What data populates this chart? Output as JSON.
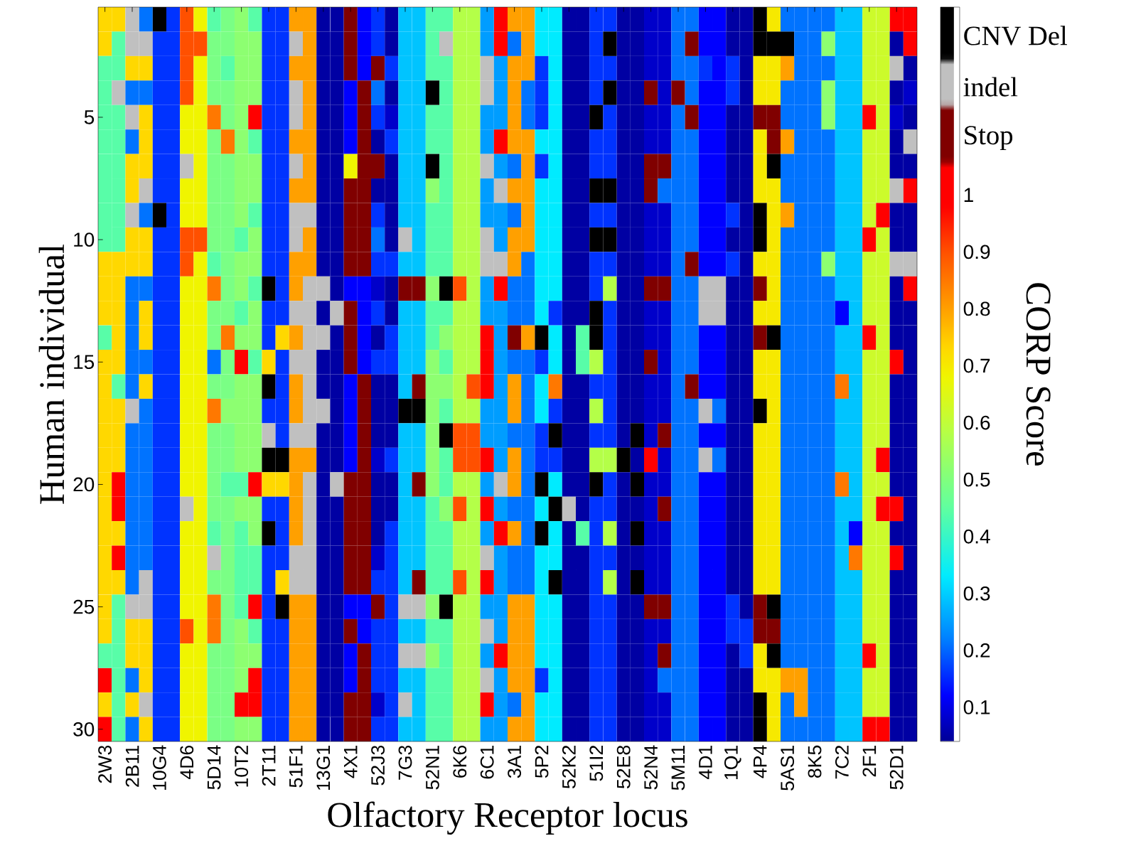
{
  "chart_data": {
    "type": "heatmap",
    "xlabel": "Olfactory Receptor locus",
    "ylabel": "Human individual",
    "clabel": "CORP Score",
    "categories": [
      "2W3",
      null,
      "2B11",
      null,
      "10G4",
      null,
      "4D6",
      null,
      "5D14",
      null,
      "10T2",
      null,
      "2T11",
      null,
      "51F1",
      null,
      "13G1",
      null,
      "4X1",
      null,
      "52J3",
      null,
      "7G3",
      null,
      "52N1",
      null,
      "6K6",
      null,
      "6C1",
      null,
      "3A1",
      null,
      "5P2",
      null,
      "52K2",
      null,
      "51I2",
      null,
      "52E8",
      null,
      "52N4",
      null,
      "5M11",
      null,
      "4D1",
      null,
      "1Q1",
      null,
      "4P4",
      null,
      "5AS1",
      null,
      "8K5",
      null,
      "7C2",
      null,
      "2F1",
      null,
      "52D1",
      null
    ],
    "y_categories": [
      null,
      null,
      null,
      null,
      "5",
      null,
      null,
      null,
      null,
      "10",
      null,
      null,
      null,
      null,
      "15",
      null,
      null,
      null,
      null,
      "20",
      null,
      null,
      null,
      null,
      "25",
      null,
      null,
      null,
      null,
      "30"
    ],
    "clim": [
      0.04,
      1.33
    ],
    "cticks": [
      0.1,
      0.2,
      0.3,
      0.4,
      0.5,
      0.6,
      0.7,
      0.8,
      0.9,
      1,
      {
        "value": 1.1,
        "label": "Stop"
      },
      {
        "value": 1.19,
        "label": "indel"
      },
      {
        "value": 1.28,
        "label": "CNV Del"
      }
    ],
    "cells": [
      [
        0.73,
        0.73,
        1.19,
        0.21,
        1.28,
        0.16,
        0.9,
        0.68,
        0.44,
        0.49,
        0.52,
        0.44,
        0.16,
        0.16,
        0.8,
        0.8,
        0.05,
        0.05,
        1.1,
        0.12,
        0.16,
        0.05,
        0.29,
        0.29,
        0.44,
        0.44,
        0.58,
        0.58,
        0.25,
        1,
        0.8,
        0.8,
        0.33,
        0.33,
        0.05,
        0.05,
        0.16,
        0.16,
        0.05,
        0.05,
        0.08,
        0.08,
        0.21,
        0.21,
        0.12,
        0.12,
        0.05,
        0.05,
        1.28,
        0.7,
        0.21,
        0.21,
        0.21,
        0.21,
        0.29,
        0.29,
        0.62,
        0.62,
        1,
        1
      ],
      [
        0.73,
        0.44,
        1.19,
        1.19,
        0.16,
        0.16,
        0.9,
        0.9,
        0.49,
        0.49,
        0.52,
        0.52,
        0.16,
        0.16,
        1.19,
        0.8,
        0.05,
        0.05,
        1.1,
        0.12,
        0.16,
        0.05,
        0.29,
        0.29,
        0.44,
        1.19,
        0.58,
        0.58,
        0.25,
        1,
        0.21,
        0.8,
        0.33,
        0.33,
        0.05,
        0.05,
        0.16,
        1.28,
        0.05,
        0.05,
        0.08,
        0.08,
        0.21,
        1.1,
        0.12,
        0.12,
        0.05,
        0.05,
        1.28,
        1.28,
        1.28,
        0.21,
        0.21,
        0.52,
        0.29,
        0.29,
        0.62,
        0.62,
        0.05,
        1
      ],
      [
        0.44,
        0.44,
        0.73,
        0.73,
        0.16,
        0.16,
        0.9,
        0.68,
        0.49,
        0.44,
        0.52,
        0.52,
        0.16,
        0.16,
        0.8,
        0.8,
        0.05,
        0.05,
        1.1,
        0.12,
        1.1,
        0.16,
        0.29,
        0.29,
        0.44,
        0.44,
        0.58,
        0.58,
        1.19,
        0.25,
        0.8,
        0.8,
        0.16,
        0.33,
        0.05,
        0.05,
        0.16,
        0.16,
        0.05,
        0.05,
        0.08,
        0.08,
        0.21,
        0.21,
        0.16,
        0.12,
        0.16,
        0.05,
        0.7,
        0.7,
        0.8,
        0.21,
        0.21,
        0.21,
        0.29,
        0.29,
        0.62,
        0.62,
        1.19,
        0.05
      ],
      [
        0.44,
        1.19,
        0.21,
        0.21,
        0.16,
        0.16,
        0.9,
        0.68,
        0.49,
        0.49,
        0.52,
        0.52,
        0.16,
        0.16,
        1.19,
        0.8,
        0.05,
        0.05,
        0.12,
        1.1,
        0.21,
        0.05,
        0.29,
        0.29,
        1.28,
        0.44,
        0.58,
        0.58,
        1.19,
        0.25,
        0.8,
        0.21,
        0.16,
        0.33,
        0.05,
        0.05,
        0.16,
        1.28,
        0.05,
        0.05,
        1.1,
        0.08,
        1.1,
        0.21,
        0.12,
        0.12,
        0.16,
        0.05,
        0.7,
        0.7,
        0.21,
        0.21,
        0.21,
        0.52,
        0.29,
        0.29,
        0.62,
        0.62,
        0.05,
        0.08
      ],
      [
        0.44,
        0.44,
        1.19,
        0.73,
        0.16,
        0.16,
        0.68,
        0.68,
        0.85,
        0.49,
        0.52,
        1,
        0.16,
        0.16,
        1.19,
        0.8,
        0.05,
        0.05,
        0.12,
        1.1,
        0.16,
        0.08,
        0.29,
        0.29,
        0.44,
        0.44,
        0.58,
        0.58,
        0.25,
        0.25,
        0.8,
        0.21,
        0.16,
        0.33,
        0.05,
        0.05,
        1.28,
        0.16,
        0.05,
        0.05,
        0.08,
        0.08,
        0.21,
        1.1,
        0.12,
        0.12,
        0.05,
        0.05,
        1.1,
        1.1,
        0.21,
        0.21,
        0.21,
        0.52,
        0.29,
        0.29,
        1,
        0.62,
        0.08,
        0.05
      ],
      [
        0.44,
        0.44,
        0.21,
        0.73,
        0.16,
        0.16,
        0.68,
        0.68,
        0.49,
        0.85,
        0.52,
        0.44,
        0.16,
        0.16,
        0.8,
        0.8,
        0.05,
        0.05,
        0.12,
        1.1,
        0.05,
        0.16,
        0.29,
        0.29,
        0.44,
        0.44,
        0.58,
        0.58,
        0.25,
        1,
        0.8,
        0.8,
        0.33,
        0.33,
        0.05,
        0.05,
        0.16,
        0.16,
        0.05,
        0.05,
        0.08,
        0.08,
        0.21,
        0.21,
        0.12,
        0.12,
        0.05,
        0.05,
        0.7,
        1.1,
        0.8,
        0.21,
        0.21,
        0.21,
        0.29,
        0.29,
        0.62,
        0.62,
        0.05,
        1.19
      ],
      [
        0.44,
        0.44,
        0.73,
        0.73,
        0.16,
        0.16,
        1.19,
        0.68,
        0.49,
        0.49,
        0.52,
        0.52,
        0.16,
        0.16,
        1.19,
        0.8,
        0.05,
        0.05,
        0.68,
        1.1,
        1.1,
        0.05,
        0.29,
        0.29,
        1.28,
        0.44,
        0.58,
        0.58,
        1.19,
        0.25,
        0.21,
        0.8,
        0.16,
        0.33,
        0.05,
        0.05,
        0.16,
        0.16,
        0.05,
        0.05,
        1.1,
        1.1,
        0.21,
        0.21,
        0.12,
        0.12,
        0.05,
        0.05,
        0.7,
        1.28,
        0.21,
        0.21,
        0.21,
        0.21,
        0.29,
        0.29,
        0.62,
        0.62,
        0.05,
        0.05
      ],
      [
        0.44,
        0.44,
        0.73,
        1.19,
        0.16,
        0.16,
        0.68,
        0.68,
        0.49,
        0.49,
        0.52,
        0.52,
        0.16,
        0.16,
        0.8,
        0.8,
        0.05,
        0.05,
        1.1,
        1.1,
        0.05,
        0.05,
        0.29,
        0.29,
        0.52,
        0.44,
        0.58,
        0.58,
        0.25,
        1.19,
        0.8,
        0.8,
        0.33,
        0.33,
        0.05,
        0.05,
        1.28,
        1.28,
        0.05,
        0.05,
        1.1,
        0.21,
        0.21,
        0.21,
        0.12,
        0.12,
        0.05,
        0.05,
        0.7,
        0.7,
        0.21,
        0.21,
        0.21,
        0.21,
        0.29,
        0.29,
        0.62,
        0.62,
        1.19,
        1
      ],
      [
        0.44,
        0.44,
        1.19,
        0.21,
        1.28,
        0.16,
        0.68,
        0.68,
        0.49,
        0.49,
        0.52,
        0.44,
        0.16,
        0.16,
        1.19,
        1.19,
        0.05,
        0.05,
        1.1,
        1.1,
        0.16,
        0.05,
        0.29,
        0.29,
        0.44,
        0.44,
        0.58,
        0.58,
        0.25,
        0.25,
        0.21,
        0.8,
        0.33,
        0.33,
        0.05,
        0.05,
        0.16,
        0.16,
        0.05,
        0.05,
        0.08,
        0.08,
        0.21,
        0.21,
        0.12,
        0.12,
        0.16,
        0.05,
        1.28,
        0.7,
        0.8,
        0.21,
        0.21,
        0.21,
        0.29,
        0.29,
        0.62,
        1,
        0.05,
        0.05
      ],
      [
        0.44,
        0.44,
        0.73,
        0.73,
        0.16,
        0.16,
        0.9,
        0.9,
        0.49,
        0.49,
        0.44,
        0.52,
        0.16,
        0.16,
        1.19,
        0.8,
        0.05,
        0.05,
        1.1,
        1.1,
        0.21,
        0.05,
        1.19,
        0.29,
        0.44,
        0.44,
        0.58,
        0.58,
        1.19,
        0.25,
        0.8,
        0.8,
        0.33,
        0.33,
        0.05,
        0.05,
        1.28,
        1.28,
        0.05,
        0.05,
        0.08,
        0.08,
        0.21,
        0.21,
        0.12,
        0.12,
        0.05,
        0.05,
        1.28,
        0.7,
        0.21,
        0.21,
        0.21,
        0.21,
        0.29,
        0.29,
        1,
        0.62,
        0.05,
        0.05
      ],
      [
        0.73,
        0.73,
        0.73,
        0.73,
        0.16,
        0.16,
        0.9,
        0.68,
        0.44,
        0.49,
        0.52,
        0.52,
        0.16,
        0.16,
        0.8,
        0.8,
        0.05,
        0.05,
        1.1,
        1.1,
        0.16,
        0.16,
        0.29,
        0.29,
        0.44,
        0.44,
        0.58,
        0.58,
        1.19,
        1.19,
        0.8,
        0.21,
        0.33,
        0.33,
        0.05,
        0.05,
        0.16,
        0.16,
        0.05,
        0.05,
        0.08,
        0.08,
        0.21,
        1.1,
        0.12,
        0.12,
        0.16,
        0.05,
        0.7,
        0.7,
        0.21,
        0.21,
        0.21,
        0.52,
        0.29,
        0.29,
        0.62,
        0.62,
        1.19,
        1.19
      ],
      [
        0.73,
        0.73,
        0.21,
        0.21,
        0.16,
        0.16,
        0.68,
        0.68,
        0.85,
        0.49,
        0.52,
        0.44,
        1.28,
        0.16,
        0.8,
        1.19,
        1.19,
        0.05,
        0.12,
        0.12,
        0.08,
        0.05,
        1.1,
        1.1,
        0.52,
        1.28,
        0.9,
        0.58,
        0.25,
        1,
        0.21,
        0.21,
        0.33,
        0.33,
        0.05,
        0.05,
        0.16,
        0.58,
        0.05,
        0.05,
        1.1,
        1.1,
        0.21,
        0.21,
        1.19,
        1.19,
        0.05,
        0.05,
        1.1,
        0.7,
        0.21,
        0.21,
        0.21,
        0.21,
        0.29,
        0.29,
        0.62,
        0.62,
        0.05,
        1
      ],
      [
        0.73,
        0.73,
        0.21,
        0.73,
        0.16,
        0.16,
        0.68,
        0.68,
        0.49,
        0.49,
        0.44,
        0.52,
        0.16,
        0.16,
        1.19,
        1.19,
        0.05,
        1.19,
        1.1,
        0.12,
        0.16,
        0.05,
        0.29,
        0.29,
        0.44,
        0.44,
        0.58,
        0.58,
        0.25,
        0.25,
        0.21,
        0.21,
        0.33,
        0.16,
        0.05,
        0.05,
        1.28,
        0.16,
        0.05,
        0.05,
        0.08,
        0.08,
        0.21,
        0.21,
        1.19,
        1.19,
        0.05,
        0.05,
        0.7,
        0.7,
        0.21,
        0.21,
        0.21,
        0.21,
        0.12,
        0.29,
        0.62,
        0.62,
        0.05,
        0.05
      ],
      [
        0.44,
        0.73,
        0.21,
        0.73,
        0.16,
        0.16,
        0.68,
        0.68,
        0.49,
        0.85,
        0.52,
        0.52,
        0.16,
        0.73,
        0.8,
        1.19,
        1.19,
        0.05,
        1.1,
        0.12,
        0.05,
        0.16,
        0.29,
        0.29,
        0.44,
        0.52,
        0.58,
        0.58,
        1,
        0.25,
        1.1,
        0.8,
        1.28,
        0.33,
        0.05,
        0.44,
        1.28,
        0.16,
        0.05,
        0.05,
        0.08,
        0.08,
        0.21,
        0.21,
        0.12,
        0.12,
        0.05,
        0.05,
        1.1,
        1.28,
        0.21,
        0.21,
        0.21,
        0.21,
        0.29,
        0.29,
        1,
        0.62,
        0.05,
        0.05
      ],
      [
        0.73,
        0.73,
        0.21,
        0.21,
        0.16,
        0.16,
        0.68,
        0.68,
        0.21,
        0.49,
        1,
        0.44,
        0.73,
        0.16,
        1.19,
        1.19,
        0.05,
        0.05,
        1.1,
        0.12,
        0.16,
        0.16,
        0.29,
        0.29,
        0.52,
        0.44,
        0.58,
        0.58,
        1,
        0.25,
        0.21,
        0.21,
        0.16,
        0.33,
        0.05,
        0.44,
        0.58,
        0.16,
        0.05,
        0.05,
        1.1,
        0.08,
        0.21,
        0.21,
        0.12,
        0.12,
        0.05,
        0.05,
        0.7,
        0.7,
        0.21,
        0.21,
        0.21,
        0.21,
        0.29,
        0.29,
        0.62,
        0.62,
        1,
        0.05
      ],
      [
        0.73,
        0.44,
        0.21,
        0.73,
        0.16,
        0.16,
        0.68,
        0.68,
        0.49,
        0.49,
        0.52,
        0.52,
        1.28,
        0.16,
        0.8,
        1.19,
        0.05,
        0.05,
        0.12,
        1.1,
        0.05,
        0.05,
        0.29,
        1.1,
        0.52,
        0.52,
        0.58,
        0.9,
        1,
        0.25,
        0.8,
        0.21,
        0.33,
        0.85,
        0.05,
        0.05,
        0.16,
        0.16,
        0.05,
        0.05,
        0.08,
        0.08,
        0.21,
        1.1,
        0.12,
        0.12,
        0.05,
        0.05,
        0.7,
        0.7,
        0.21,
        0.21,
        0.21,
        0.21,
        0.85,
        0.29,
        0.62,
        0.62,
        0.05,
        0.05
      ],
      [
        0.73,
        0.73,
        1.19,
        0.21,
        0.16,
        0.16,
        0.68,
        0.68,
        0.85,
        0.52,
        0.52,
        0.52,
        0.16,
        0.16,
        0.8,
        1.19,
        1.19,
        0.05,
        0.12,
        1.1,
        0.05,
        0.05,
        1.28,
        1.28,
        0.52,
        0.44,
        0.58,
        0.58,
        0.25,
        0.25,
        0.8,
        0.21,
        0.33,
        0.16,
        0.05,
        0.05,
        0.58,
        0.16,
        0.05,
        0.05,
        0.08,
        0.08,
        0.21,
        0.21,
        1.19,
        0.21,
        0.05,
        0.05,
        1.28,
        0.7,
        0.21,
        0.21,
        0.21,
        0.21,
        0.29,
        0.29,
        0.62,
        0.62,
        0.05,
        0.05
      ],
      [
        0.73,
        0.73,
        0.21,
        0.21,
        0.16,
        0.16,
        0.68,
        0.68,
        0.49,
        0.49,
        0.52,
        0.52,
        1.19,
        0.16,
        1.19,
        1.19,
        0.05,
        0.05,
        0.12,
        1.1,
        0.05,
        0.05,
        0.29,
        0.29,
        0.52,
        1.28,
        0.9,
        0.9,
        0.25,
        0.25,
        0.21,
        0.21,
        0.16,
        1.28,
        0.05,
        0.05,
        0.16,
        0.16,
        0.05,
        1.28,
        0.08,
        1.1,
        0.21,
        0.21,
        0.12,
        0.12,
        0.05,
        0.05,
        0.7,
        0.7,
        0.21,
        0.21,
        0.21,
        0.21,
        0.29,
        0.29,
        0.62,
        0.62,
        0.05,
        0.05
      ],
      [
        0.73,
        0.73,
        0.21,
        0.21,
        0.16,
        0.16,
        0.68,
        0.68,
        0.49,
        0.49,
        0.52,
        0.52,
        1.28,
        1.28,
        0.8,
        0.8,
        0.05,
        0.05,
        0.12,
        1.1,
        0.08,
        0.16,
        0.29,
        0.29,
        0.52,
        0.44,
        0.9,
        0.9,
        1,
        0.25,
        0.8,
        0.21,
        0.16,
        0.16,
        0.05,
        0.05,
        0.58,
        0.58,
        1.28,
        0.05,
        1,
        0.08,
        0.21,
        0.21,
        1.19,
        0.21,
        0.05,
        0.05,
        0.7,
        0.7,
        0.21,
        0.21,
        0.21,
        0.21,
        0.29,
        0.29,
        0.62,
        1,
        0.05,
        0.05
      ],
      [
        0.73,
        1,
        0.21,
        0.21,
        0.16,
        0.16,
        0.68,
        0.68,
        0.49,
        0.44,
        0.44,
        1,
        0.73,
        0.73,
        0.8,
        1.19,
        0.05,
        1.19,
        1.1,
        1.1,
        0.05,
        0.05,
        0.29,
        1.1,
        0.52,
        0.44,
        0.58,
        0.58,
        0.25,
        1.19,
        0.8,
        0.21,
        1.28,
        0.33,
        0.05,
        0.05,
        1.28,
        0.16,
        0.05,
        1.28,
        0.08,
        0.08,
        0.21,
        0.21,
        0.12,
        0.12,
        0.05,
        0.05,
        0.7,
        0.7,
        0.21,
        0.21,
        0.21,
        0.21,
        0.85,
        0.29,
        0.62,
        0.62,
        0.05,
        0.05
      ],
      [
        0.73,
        1,
        0.21,
        0.21,
        0.16,
        0.16,
        1.19,
        0.68,
        0.49,
        0.49,
        0.52,
        0.52,
        0.16,
        0.16,
        0.8,
        1.19,
        0.05,
        0.05,
        1.1,
        1.1,
        0.05,
        0.05,
        0.29,
        0.29,
        0.44,
        0.52,
        0.9,
        0.58,
        1,
        0.25,
        0.21,
        0.21,
        0.33,
        1.28,
        1.19,
        0.05,
        0.16,
        0.16,
        0.05,
        0.05,
        0.08,
        1.1,
        0.21,
        0.21,
        0.12,
        0.12,
        0.05,
        0.05,
        0.7,
        0.7,
        0.21,
        0.21,
        0.21,
        0.21,
        0.29,
        0.29,
        0.62,
        1,
        1,
        0.05
      ],
      [
        0.73,
        0.73,
        0.21,
        0.21,
        0.16,
        0.16,
        0.68,
        0.68,
        0.44,
        0.49,
        0.44,
        0.52,
        1.28,
        0.16,
        0.8,
        1.19,
        0.05,
        0.05,
        1.1,
        1.1,
        0.05,
        0.16,
        0.29,
        0.29,
        0.44,
        0.44,
        0.58,
        0.58,
        0.25,
        1,
        0.8,
        0.21,
        1.28,
        0.33,
        0.05,
        0.44,
        0.16,
        0.58,
        0.05,
        1.28,
        0.08,
        0.08,
        0.21,
        0.21,
        0.12,
        0.12,
        0.05,
        0.05,
        0.7,
        0.7,
        0.21,
        0.21,
        0.21,
        0.21,
        0.29,
        0.12,
        0.62,
        0.62,
        0.05,
        0.05
      ],
      [
        0.73,
        1,
        0.21,
        0.21,
        0.16,
        0.16,
        0.68,
        0.68,
        1.19,
        0.49,
        0.44,
        0.44,
        0.16,
        0.16,
        1.19,
        1.19,
        0.05,
        0.05,
        1.1,
        1.1,
        0.08,
        0.16,
        0.29,
        0.29,
        0.44,
        0.44,
        0.58,
        0.58,
        1.19,
        0.25,
        0.21,
        0.21,
        0.33,
        0.33,
        0.05,
        0.05,
        0.16,
        0.16,
        0.05,
        0.05,
        0.08,
        0.08,
        0.21,
        0.21,
        0.12,
        0.12,
        0.05,
        0.05,
        0.7,
        0.7,
        0.21,
        0.21,
        0.21,
        0.21,
        0.29,
        0.85,
        0.62,
        0.62,
        1,
        0.05
      ],
      [
        0.73,
        0.73,
        0.21,
        1.19,
        0.16,
        0.16,
        0.68,
        0.68,
        0.49,
        0.49,
        0.44,
        0.44,
        0.16,
        0.73,
        1.19,
        1.19,
        0.05,
        0.05,
        1.1,
        1.1,
        0.16,
        0.16,
        0.29,
        1.1,
        0.44,
        0.44,
        0.9,
        0.58,
        1,
        0.25,
        0.21,
        0.21,
        0.33,
        1.28,
        0.05,
        0.05,
        0.16,
        0.58,
        0.05,
        1.28,
        0.08,
        0.08,
        0.21,
        0.21,
        0.12,
        0.12,
        0.05,
        0.05,
        0.7,
        0.7,
        0.21,
        0.21,
        0.21,
        0.21,
        0.29,
        0.29,
        0.62,
        0.62,
        0.05,
        0.05
      ],
      [
        0.73,
        0.44,
        1.19,
        1.19,
        0.16,
        0.16,
        0.68,
        0.68,
        0.85,
        0.49,
        0.44,
        1,
        0.16,
        1.28,
        0.8,
        0.8,
        0.05,
        0.05,
        0.12,
        0.12,
        1.1,
        0.16,
        1.19,
        1.19,
        0.52,
        1.28,
        0.58,
        0.58,
        0.25,
        0.25,
        0.8,
        0.8,
        0.33,
        0.33,
        0.05,
        0.05,
        0.16,
        0.16,
        0.05,
        0.05,
        1.1,
        1.1,
        0.21,
        0.21,
        0.12,
        0.12,
        0.16,
        0.05,
        1.1,
        1.28,
        0.21,
        0.21,
        0.21,
        0.21,
        0.29,
        0.29,
        0.62,
        0.62,
        0.05,
        0.05
      ],
      [
        0.73,
        0.44,
        0.73,
        0.73,
        0.16,
        0.16,
        0.9,
        0.68,
        0.85,
        0.49,
        0.52,
        0.44,
        0.16,
        0.16,
        0.8,
        0.8,
        0.05,
        0.05,
        1.1,
        0.12,
        0.16,
        0.16,
        0.29,
        0.29,
        0.44,
        0.44,
        0.58,
        0.58,
        1.19,
        0.25,
        0.8,
        0.8,
        0.33,
        0.33,
        0.05,
        0.05,
        0.16,
        0.16,
        0.05,
        0.05,
        0.08,
        0.08,
        0.21,
        0.21,
        0.12,
        0.12,
        0.16,
        0.16,
        1.1,
        1.1,
        0.21,
        0.21,
        0.21,
        0.21,
        0.29,
        0.29,
        0.62,
        0.62,
        0.05,
        0.05
      ],
      [
        0.44,
        0.44,
        0.73,
        0.73,
        0.16,
        0.16,
        0.68,
        0.68,
        0.49,
        0.49,
        0.52,
        0.52,
        0.16,
        0.16,
        0.8,
        0.8,
        0.05,
        0.05,
        0.12,
        1.1,
        0.16,
        0.16,
        1.19,
        1.19,
        0.52,
        0.44,
        0.58,
        0.58,
        0.25,
        1,
        0.8,
        0.8,
        0.33,
        0.33,
        0.05,
        0.05,
        0.16,
        0.16,
        0.05,
        0.05,
        0.08,
        1.1,
        0.21,
        0.21,
        0.12,
        0.12,
        0.05,
        0.16,
        0.7,
        1.28,
        0.21,
        0.21,
        0.21,
        0.21,
        0.29,
        0.29,
        1,
        0.62,
        0.05,
        0.05
      ],
      [
        1,
        0.44,
        0.21,
        0.73,
        0.16,
        0.16,
        0.68,
        0.68,
        0.49,
        0.49,
        0.52,
        1,
        0.16,
        0.16,
        0.8,
        0.8,
        0.05,
        0.05,
        0.12,
        1.1,
        0.16,
        0.16,
        0.29,
        0.29,
        0.44,
        0.44,
        0.58,
        0.58,
        1.19,
        0.25,
        0.8,
        0.8,
        0.16,
        0.33,
        0.05,
        0.05,
        0.16,
        0.16,
        0.05,
        0.05,
        0.08,
        0.21,
        0.21,
        0.21,
        0.12,
        0.12,
        0.05,
        0.05,
        0.7,
        0.7,
        0.8,
        0.8,
        0.21,
        0.21,
        0.29,
        0.29,
        0.62,
        0.62,
        0.05,
        0.05
      ],
      [
        0.73,
        0.44,
        0.73,
        1.19,
        0.16,
        0.16,
        0.68,
        0.68,
        0.49,
        0.49,
        1,
        1,
        0.16,
        0.16,
        0.8,
        0.8,
        0.05,
        0.05,
        1.1,
        1.1,
        0.08,
        0.16,
        1.19,
        0.29,
        0.44,
        0.44,
        0.58,
        0.58,
        1,
        0.25,
        0.21,
        0.8,
        0.33,
        0.33,
        0.05,
        0.05,
        0.16,
        0.16,
        0.05,
        0.05,
        0.08,
        0.08,
        0.21,
        0.21,
        0.12,
        0.12,
        0.05,
        0.05,
        1.28,
        0.7,
        0.21,
        0.8,
        0.21,
        0.21,
        0.29,
        0.29,
        0.62,
        0.62,
        0.05,
        0.05
      ],
      [
        1,
        0.44,
        0.21,
        0.73,
        0.16,
        0.16,
        0.68,
        0.68,
        0.49,
        0.49,
        0.52,
        0.52,
        0.16,
        0.16,
        0.8,
        0.8,
        0.05,
        0.05,
        1.1,
        1.1,
        0.16,
        0.16,
        0.29,
        0.29,
        0.44,
        0.44,
        0.58,
        0.58,
        0.25,
        0.25,
        0.8,
        0.8,
        0.33,
        0.33,
        0.05,
        0.05,
        0.16,
        0.16,
        0.05,
        0.05,
        0.08,
        0.08,
        0.21,
        0.21,
        0.12,
        0.12,
        0.05,
        0.05,
        1.28,
        0.7,
        0.21,
        0.21,
        0.21,
        0.21,
        0.29,
        0.29,
        1,
        1,
        0.05,
        0.05
      ]
    ]
  }
}
